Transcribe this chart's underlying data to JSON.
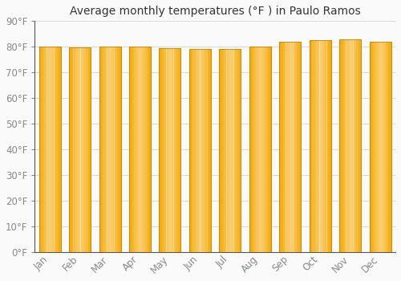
{
  "months": [
    "Jan",
    "Feb",
    "Mar",
    "Apr",
    "May",
    "Jun",
    "Jul",
    "Aug",
    "Sep",
    "Oct",
    "Nov",
    "Dec"
  ],
  "values": [
    80.1,
    79.7,
    80.2,
    80.1,
    79.5,
    79.0,
    79.0,
    80.0,
    82.0,
    82.5,
    82.8,
    81.9
  ],
  "bar_color_center": "#FFD966",
  "bar_color_edge": "#F5A800",
  "bar_border_color": "#CC8800",
  "background_color": "#FAFAFA",
  "plot_bg_color": "#FAFAFA",
  "title": "Average monthly temperatures (°F ) in Paulo Ramos",
  "title_fontsize": 10,
  "ylim": [
    0,
    90
  ],
  "yticks": [
    0,
    10,
    20,
    30,
    40,
    50,
    60,
    70,
    80,
    90
  ],
  "ytick_labels": [
    "0°F",
    "10°F",
    "20°F",
    "30°F",
    "40°F",
    "50°F",
    "60°F",
    "70°F",
    "80°F",
    "90°F"
  ],
  "grid_color": "#D8D8D8",
  "tick_color": "#888888",
  "label_fontsize": 8.5,
  "bar_width": 0.72
}
